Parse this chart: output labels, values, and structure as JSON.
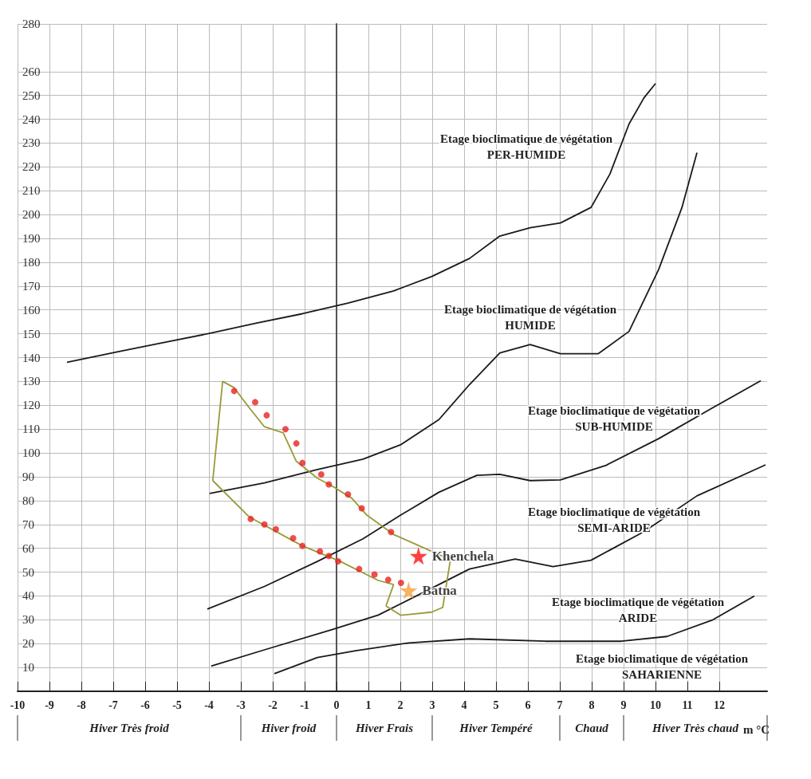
{
  "chart_data": {
    "type": "line",
    "xlabel": "m °C",
    "xlim": [
      -10,
      13.5
    ],
    "xticks": [
      -10,
      -9,
      -8,
      -7,
      -6,
      -5,
      -4,
      -3,
      -2,
      -1,
      0,
      1,
      2,
      3,
      4,
      5,
      6,
      7,
      8,
      9,
      10,
      11,
      12
    ],
    "ylim": [
      0,
      280
    ],
    "yticks": [
      10,
      20,
      30,
      40,
      50,
      60,
      70,
      80,
      90,
      100,
      110,
      120,
      130,
      140,
      150,
      160,
      170,
      180,
      190,
      200,
      210,
      220,
      230,
      240,
      250,
      260,
      280
    ],
    "grid": true,
    "series": [
      {
        "type": "line",
        "marker": "none",
        "color": "#1a1a1a",
        "x": [
          -8.45,
          -6.79,
          -5.36,
          -3.93,
          -2.5,
          -1.07,
          0.36,
          1.79,
          2.98,
          4.17,
          5.12,
          6.07,
          7.02,
          7.98,
          8.57,
          9.17,
          9.64,
          10
        ],
        "values": [
          138,
          142.6,
          146.5,
          150.3,
          154.5,
          158.4,
          162.9,
          168,
          174,
          181.6,
          191,
          194.5,
          196.5,
          203,
          217,
          238,
          249,
          255
        ]
      },
      {
        "type": "line",
        "marker": "none",
        "color": "#1a1a1a",
        "x": [
          -3.98,
          -2.26,
          -0.6,
          0.83,
          2.02,
          3.21,
          4.17,
          5.12,
          6.07,
          7.02,
          8.2,
          9.17,
          10.1,
          10.83,
          11.3
        ],
        "values": [
          83,
          87.4,
          93,
          97.4,
          103.5,
          114,
          128.7,
          142,
          145.5,
          141.6,
          141.6,
          151,
          177,
          203,
          226
        ]
      },
      {
        "type": "line",
        "marker": "none",
        "color": "#1a1a1a",
        "x": [
          -4.05,
          -2.26,
          -0.6,
          0.83,
          2.02,
          3.21,
          4.4,
          5.12,
          6.07,
          7.02,
          8.45,
          10.1,
          11.8,
          13.3
        ],
        "values": [
          34.5,
          44,
          54.5,
          64,
          74,
          83.5,
          90.6,
          91,
          88.4,
          88.7,
          94.8,
          106,
          119,
          130.3
        ]
      },
      {
        "type": "line",
        "marker": "none",
        "color": "#1a1a1a",
        "x": [
          -3.93,
          -2.26,
          -0.12,
          1.31,
          2.74,
          4.17,
          5.6,
          6.79,
          7.98,
          9.64,
          11.3,
          13.45
        ],
        "values": [
          10.6,
          17.4,
          26,
          32,
          41.6,
          51.3,
          55.5,
          52.3,
          55,
          67,
          82,
          95
        ]
      },
      {
        "type": "line",
        "marker": "none",
        "color": "#1a1a1a",
        "x": [
          -1.95,
          -0.6,
          0.6,
          2.26,
          4.17,
          6.55,
          8.93,
          10.36,
          11.8,
          13.1
        ],
        "values": [
          7.4,
          14.2,
          17,
          20.3,
          22,
          21,
          21,
          23,
          30,
          40
        ]
      },
      {
        "type": "line",
        "marker": "none",
        "color": "#9a9a3a",
        "x": [
          -3.88,
          -3.57,
          -3.21,
          -2.74,
          -2.26,
          -1.67,
          -1.26,
          -0.6,
          -0.12,
          0.48,
          0.95,
          1.79,
          2.5,
          3.57
        ],
        "values": [
          88.4,
          130,
          127.4,
          119,
          111,
          108.4,
          96.5,
          89.4,
          86,
          81,
          73.9,
          65.8,
          61.6,
          55.2
        ]
      },
      {
        "type": "line",
        "marker": "none",
        "color": "#9a9a3a",
        "x": [
          1.55,
          2.02,
          2.98,
          3.33,
          3.57
        ],
        "values": [
          35.8,
          31.9,
          33.2,
          35.2,
          55.2
        ]
      },
      {
        "type": "line",
        "marker": "none",
        "color": "#9a9a3a",
        "x": [
          1.55,
          1.79
        ],
        "values": [
          35.8,
          44.8
        ]
      },
      {
        "type": "line",
        "marker": "none",
        "color": "#9a9a3a",
        "x": [
          -3.88,
          -2.74,
          -1.07,
          0.12,
          1.31,
          1.79
        ],
        "values": [
          88.4,
          73.2,
          61,
          54.5,
          46.5,
          44.8
        ]
      },
      {
        "type": "scatter",
        "marker": "circle",
        "color": "#e8231f",
        "x": [
          -3.21,
          -2.55,
          -2.19,
          -1.6,
          -1.26,
          -1.07,
          -0.48,
          -0.24,
          0.36,
          0.79,
          1.71,
          -2.69,
          -2.26,
          -1.9,
          -1.36,
          -1.07,
          -0.52,
          -0.24,
          0.05,
          0.71,
          1.19,
          1.62,
          2.02
        ],
        "values": [
          126,
          121.3,
          115.8,
          110,
          104,
          95.8,
          91,
          86.8,
          82.6,
          76.8,
          66.8,
          72.3,
          70,
          68,
          64.2,
          61,
          58.7,
          56.8,
          54.5,
          51.3,
          49,
          46.8,
          45.5
        ]
      },
      {
        "type": "scatter",
        "marker": "star",
        "name": "Khenchela",
        "color": "#ff1010",
        "x": [
          2.57
        ],
        "values": [
          56.8
        ]
      },
      {
        "type": "scatter",
        "marker": "star",
        "name": "Batna",
        "color": "#f5a03a",
        "x": [
          2.26
        ],
        "values": [
          42.3
        ]
      }
    ],
    "annotations": [
      "Hiver Très froid",
      "Hiver froid",
      "Hiver Frais",
      "Hiver Tempéré",
      "Chaud",
      "Hiver Très chaud",
      "Etage bioclimatique de végétation\nPER-HUMIDE",
      "Etage bioclimatique de végétation\nHUMIDE",
      "Etage bioclimatique de végétation\nSUB-HUMIDE",
      "Etage bioclimatique de végétation\nSEMI-ARIDE",
      "Etage bioclimatique de végétation\nARIDE",
      "Etage bioclimatique de végétation\nSAHARIENNE"
    ]
  }
}
